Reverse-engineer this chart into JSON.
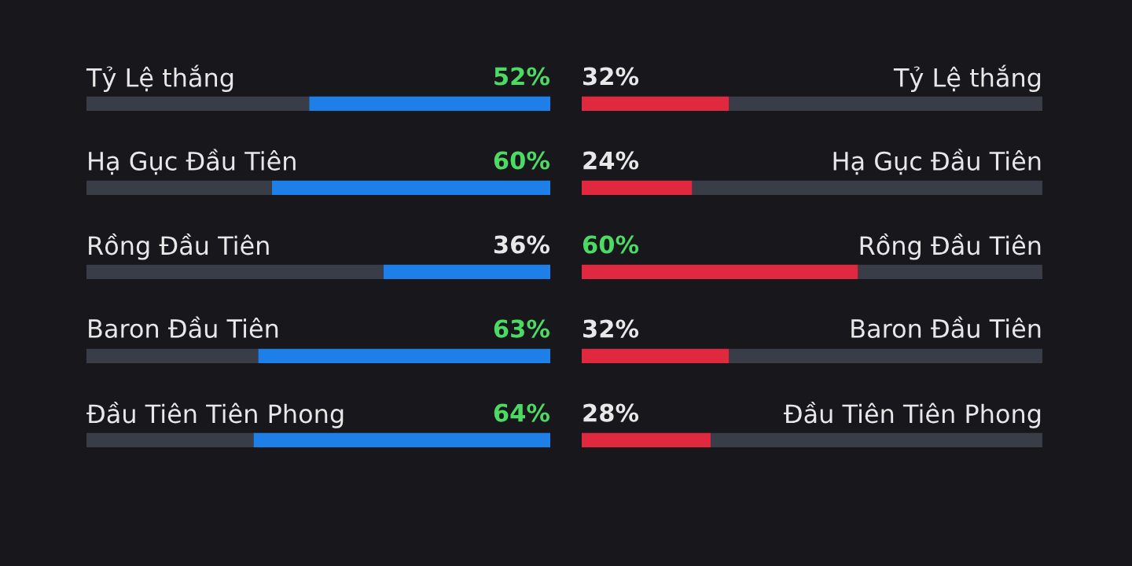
{
  "chart_data": [
    {
      "type": "bar",
      "orientation": "horizontal",
      "stacked": true,
      "categories": [
        "Tỷ Lệ thắng",
        "Hạ Gục Đầu Tiên",
        "Rồng Đầu Tiên",
        "Baron Đầu Tiên",
        "Đầu Tiên Tiên Phong"
      ],
      "xlim": [
        100,
        0
      ],
      "tick_labels": false,
      "series": [
        {
          "color": "#1e7fe8",
          "values": [
            52,
            60,
            36,
            63,
            64
          ],
          "value_labels": [
            "52%",
            "60%",
            "36%",
            "63%",
            "64%"
          ]
        },
        {
          "color": "#383d47",
          "values": [
            48,
            40,
            64,
            37,
            36
          ]
        }
      ]
    },
    {
      "type": "bar",
      "orientation": "horizontal",
      "stacked": true,
      "categories": [
        "Tỷ Lệ thắng",
        "Hạ Gục Đầu Tiên",
        "Rồng Đầu Tiên",
        "Baron Đầu Tiên",
        "Đầu Tiên Tiên Phong"
      ],
      "xlim": [
        0,
        100
      ],
      "tick_labels": false,
      "series": [
        {
          "color": "#e0283f",
          "values": [
            32,
            24,
            60,
            32,
            28
          ],
          "value_labels": [
            "32%",
            "24%",
            "60%",
            "32%",
            "28%"
          ]
        },
        {
          "color": "#383d47",
          "values": [
            68,
            76,
            40,
            68,
            72
          ]
        }
      ]
    }
  ]
}
